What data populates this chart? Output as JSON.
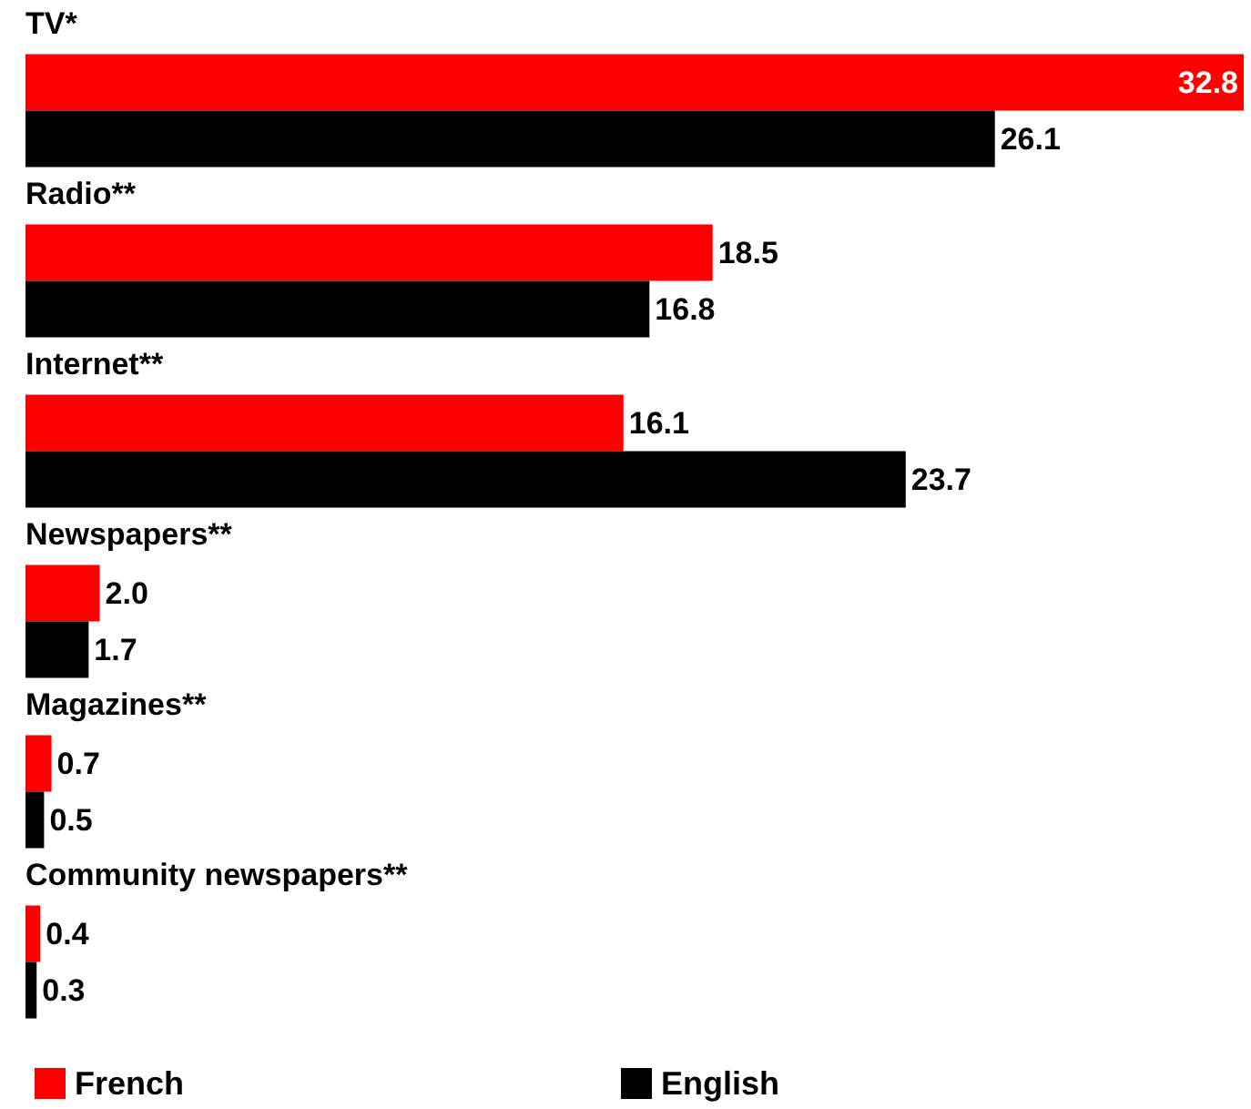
{
  "chart_data": {
    "type": "bar",
    "orientation": "horizontal",
    "categories": [
      "TV*",
      "Radio**",
      "Internet**",
      "Newspapers**",
      "Magazines**",
      "Community newspapers**"
    ],
    "series": [
      {
        "name": "French",
        "color": "#ff0000",
        "values": [
          32.8,
          18.5,
          16.1,
          2.0,
          0.7,
          0.4
        ],
        "value_labels": [
          "32.8",
          "18.5",
          "16.1",
          "2.0",
          "0.7",
          "0.4"
        ]
      },
      {
        "name": "English",
        "color": "#000000",
        "values": [
          26.1,
          16.8,
          23.7,
          1.7,
          0.5,
          0.3
        ],
        "value_labels": [
          "26.1",
          "16.8",
          "23.7",
          "1.7",
          "0.5",
          "0.3"
        ]
      }
    ],
    "legend": "bottom"
  }
}
